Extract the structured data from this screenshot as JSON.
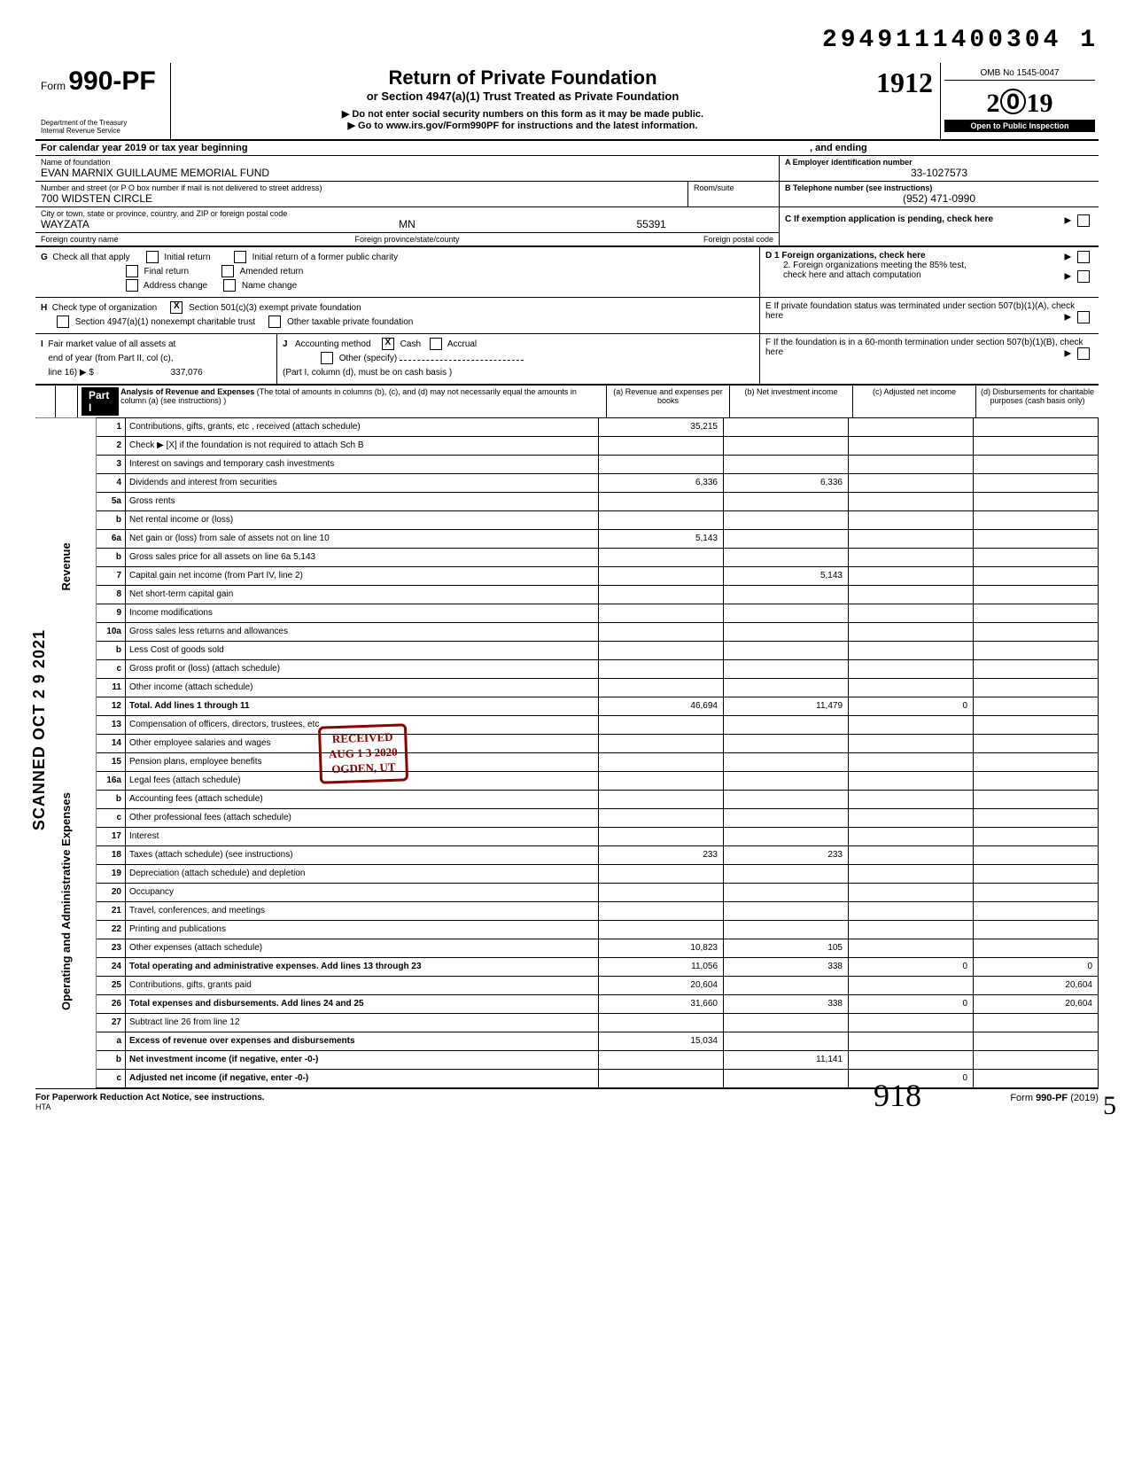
{
  "top_number": "2949111400304 1",
  "form_prefix": "Form",
  "form_number": "990-PF",
  "dept1": "Department of the Treasury",
  "dept2": "Internal Revenue Service",
  "title": "Return of Private Foundation",
  "subtitle": "or Section 4947(a)(1) Trust Treated as Private Foundation",
  "note1": "Do not enter social security numbers on this form as it may be made public.",
  "note2": "Go to www.irs.gov/Form990PF for instructions and the latest information.",
  "handwritten_year_mark": "1912",
  "omb": "OMB No 1545-0047",
  "year": "2019",
  "inspection": "Open to Public Inspection",
  "cal_year_text": "For calendar year 2019 or tax year beginning",
  "cal_year_mid": ", and ending",
  "foundation": {
    "name_label": "Name of foundation",
    "name": "EVAN MARNIX GUILLAUME MEMORIAL FUND",
    "street_label": "Number and street (or P O  box number if mail is not delivered to street address)",
    "room_label": "Room/suite",
    "street": "700 WIDSTEN CIRCLE",
    "city_label": "City or town, state or province, country, and ZIP or foreign postal code",
    "city": "WAYZATA",
    "state": "MN",
    "zip": "55391",
    "foreign_country_label": "Foreign country name",
    "foreign_province_label": "Foreign province/state/county",
    "foreign_postal_label": "Foreign postal code"
  },
  "ein_label": "A  Employer identification number",
  "ein": "33-1027573",
  "phone_label": "B  Telephone number (see instructions)",
  "phone": "(952) 471-0990",
  "c_label": "C  If exemption application is pending, check here",
  "g_label": "G",
  "g_text": "Check all that apply",
  "g_opts": {
    "initial": "Initial return",
    "initial_former": "Initial return of a former public charity",
    "final": "Final return",
    "amended": "Amended return",
    "address": "Address change",
    "name": "Name change"
  },
  "d1": "D  1  Foreign organizations, check here",
  "d2a": "2. Foreign organizations meeting the 85% test,",
  "d2b": "check here and attach computation",
  "h_label": "H",
  "h_text": "Check type of organization",
  "h_opt1": "Section 501(c)(3) exempt private foundation",
  "h_opt2": "Section 4947(a)(1) nonexempt charitable trust",
  "h_opt3": "Other taxable private foundation",
  "e_text": "E  If private foundation status was terminated under section 507(b)(1)(A), check here",
  "i_label": "I",
  "i_text1": "Fair market value of all assets at",
  "i_text2": "end of year (from Part II, col (c),",
  "i_text3": "line 16) ▶ $",
  "i_value": "337,076",
  "j_label": "J",
  "j_text": "Accounting method",
  "j_cash": "Cash",
  "j_accrual": "Accrual",
  "j_other": "Other (specify)",
  "j_note": "(Part I, column (d), must be on cash basis )",
  "f_text": "F  If the foundation is in a 60-month termination under section 507(b)(1)(B), check here",
  "part1_label": "Part I",
  "part1_title": "Analysis of Revenue and Expenses",
  "part1_sub": "(The total of amounts in columns (b), (c), and (d) may not necessarily equal the amounts in column (a) (see instructions) )",
  "col_a": "(a) Revenue and expenses per books",
  "col_b": "(b) Net investment income",
  "col_c": "(c) Adjusted net income",
  "col_d": "(d) Disbursements for charitable purposes (cash basis only)",
  "side_revenue": "Revenue",
  "side_expenses": "Operating and Administrative Expenses",
  "rows": [
    {
      "n": "1",
      "d": "Contributions, gifts, grants, etc , received (attach schedule)",
      "a": "35,215",
      "b": "",
      "c": "",
      "dcol": ""
    },
    {
      "n": "2",
      "d": "Check ▶ [X] if the foundation is not required to attach Sch B",
      "a": "",
      "b": "",
      "c": "",
      "dcol": ""
    },
    {
      "n": "3",
      "d": "Interest on savings and temporary cash investments",
      "a": "",
      "b": "",
      "c": "",
      "dcol": ""
    },
    {
      "n": "4",
      "d": "Dividends and interest from securities",
      "a": "6,336",
      "b": "6,336",
      "c": "",
      "dcol": ""
    },
    {
      "n": "5a",
      "d": "Gross rents",
      "a": "",
      "b": "",
      "c": "",
      "dcol": ""
    },
    {
      "n": "b",
      "d": "Net rental income or (loss)",
      "a": "",
      "b": "",
      "c": "",
      "dcol": ""
    },
    {
      "n": "6a",
      "d": "Net gain or (loss) from sale of assets not on line 10",
      "a": "5,143",
      "b": "",
      "c": "",
      "dcol": ""
    },
    {
      "n": "b",
      "d": "Gross sales price for all assets on line 6a                    5,143",
      "a": "",
      "b": "",
      "c": "",
      "dcol": ""
    },
    {
      "n": "7",
      "d": "Capital gain net income (from Part IV, line 2)",
      "a": "",
      "b": "5,143",
      "c": "",
      "dcol": ""
    },
    {
      "n": "8",
      "d": "Net short-term capital gain",
      "a": "",
      "b": "",
      "c": "",
      "dcol": ""
    },
    {
      "n": "9",
      "d": "Income modifications",
      "a": "",
      "b": "",
      "c": "",
      "dcol": ""
    },
    {
      "n": "10a",
      "d": "Gross sales less returns and allowances",
      "a": "",
      "b": "",
      "c": "",
      "dcol": ""
    },
    {
      "n": "b",
      "d": "Less Cost of goods sold",
      "a": "",
      "b": "",
      "c": "",
      "dcol": ""
    },
    {
      "n": "c",
      "d": "Gross profit or (loss) (attach schedule)",
      "a": "",
      "b": "",
      "c": "",
      "dcol": ""
    },
    {
      "n": "11",
      "d": "Other income (attach schedule)",
      "a": "",
      "b": "",
      "c": "",
      "dcol": ""
    },
    {
      "n": "12",
      "d": "Total. Add lines 1 through 11",
      "a": "46,694",
      "b": "11,479",
      "c": "0",
      "dcol": "",
      "bold": true
    },
    {
      "n": "13",
      "d": "Compensation of officers, directors, trustees, etc",
      "a": "",
      "b": "",
      "c": "",
      "dcol": ""
    },
    {
      "n": "14",
      "d": "Other employee salaries and wages",
      "a": "",
      "b": "",
      "c": "",
      "dcol": ""
    },
    {
      "n": "15",
      "d": "Pension plans, employee benefits",
      "a": "",
      "b": "",
      "c": "",
      "dcol": ""
    },
    {
      "n": "16a",
      "d": "Legal fees (attach schedule)",
      "a": "",
      "b": "",
      "c": "",
      "dcol": ""
    },
    {
      "n": "b",
      "d": "Accounting fees (attach schedule)",
      "a": "",
      "b": "",
      "c": "",
      "dcol": ""
    },
    {
      "n": "c",
      "d": "Other professional fees (attach schedule)",
      "a": "",
      "b": "",
      "c": "",
      "dcol": ""
    },
    {
      "n": "17",
      "d": "Interest",
      "a": "",
      "b": "",
      "c": "",
      "dcol": ""
    },
    {
      "n": "18",
      "d": "Taxes (attach schedule) (see instructions)",
      "a": "233",
      "b": "233",
      "c": "",
      "dcol": ""
    },
    {
      "n": "19",
      "d": "Depreciation (attach schedule) and depletion",
      "a": "",
      "b": "",
      "c": "",
      "dcol": ""
    },
    {
      "n": "20",
      "d": "Occupancy",
      "a": "",
      "b": "",
      "c": "",
      "dcol": ""
    },
    {
      "n": "21",
      "d": "Travel, conferences, and meetings",
      "a": "",
      "b": "",
      "c": "",
      "dcol": ""
    },
    {
      "n": "22",
      "d": "Printing and publications",
      "a": "",
      "b": "",
      "c": "",
      "dcol": ""
    },
    {
      "n": "23",
      "d": "Other expenses (attach schedule)",
      "a": "10,823",
      "b": "105",
      "c": "",
      "dcol": ""
    },
    {
      "n": "24",
      "d": "Total operating and administrative expenses. Add lines 13 through 23",
      "a": "11,056",
      "b": "338",
      "c": "0",
      "dcol": "0",
      "bold": true
    },
    {
      "n": "25",
      "d": "Contributions, gifts, grants paid",
      "a": "20,604",
      "b": "",
      "c": "",
      "dcol": "20,604"
    },
    {
      "n": "26",
      "d": "Total expenses and disbursements. Add lines 24 and 25",
      "a": "31,660",
      "b": "338",
      "c": "0",
      "dcol": "20,604",
      "bold": true
    },
    {
      "n": "27",
      "d": "Subtract line 26 from line 12",
      "a": "",
      "b": "",
      "c": "",
      "dcol": ""
    },
    {
      "n": "a",
      "d": "Excess of revenue over expenses and disbursements",
      "a": "15,034",
      "b": "",
      "c": "",
      "dcol": "",
      "bold": true
    },
    {
      "n": "b",
      "d": "Net investment income (if negative, enter -0-)",
      "a": "",
      "b": "11,141",
      "c": "",
      "dcol": "",
      "bold": true
    },
    {
      "n": "c",
      "d": "Adjusted net income (if negative, enter -0-)",
      "a": "",
      "b": "",
      "c": "0",
      "dcol": "",
      "bold": true
    }
  ],
  "stamp": {
    "received": "RECEIVED",
    "date": "AUG 1 3 2020",
    "ogden": "OGDEN, UT"
  },
  "scanned": "SCANNED  OCT 2 9 2021",
  "footer_left": "For Paperwork Reduction Act Notice, see instructions.",
  "footer_mid": "HTA",
  "footer_right": "Form 990-PF (2019)",
  "signature": "918",
  "page_mark": "5"
}
